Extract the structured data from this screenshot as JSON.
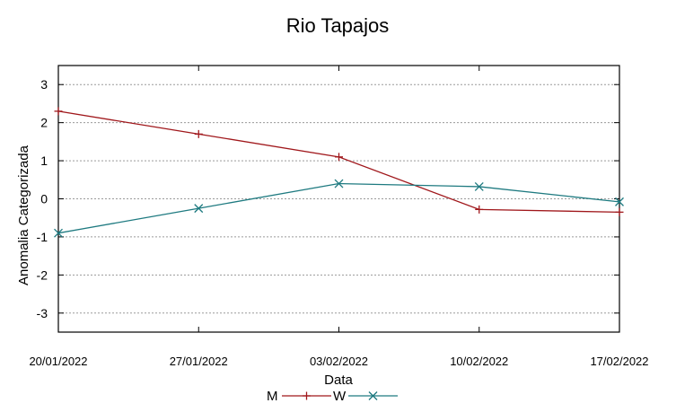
{
  "chart_data": {
    "type": "line",
    "title": "Rio Tapajos",
    "xlabel": "Data",
    "ylabel": "Anomalia Categorizada",
    "x": [
      "20/01/2022",
      "27/01/2022",
      "03/02/2022",
      "10/02/2022",
      "17/02/2022"
    ],
    "ylim": [
      -3.5,
      3.5
    ],
    "yticks": [
      -3,
      -2,
      -1,
      0,
      1,
      2,
      3
    ],
    "yticklabels": [
      "-3",
      "-2",
      "-1",
      "0",
      "1",
      "2",
      "3"
    ],
    "grid": true,
    "legend_position": "bottom-center",
    "series": [
      {
        "name": "M",
        "color": "#a0171b",
        "marker": "plus",
        "values": [
          2.3,
          1.7,
          1.1,
          -0.28,
          -0.35
        ]
      },
      {
        "name": "W",
        "color": "#1e7a80",
        "marker": "cross",
        "values": [
          -0.9,
          -0.25,
          0.4,
          0.32,
          -0.08
        ]
      }
    ]
  }
}
